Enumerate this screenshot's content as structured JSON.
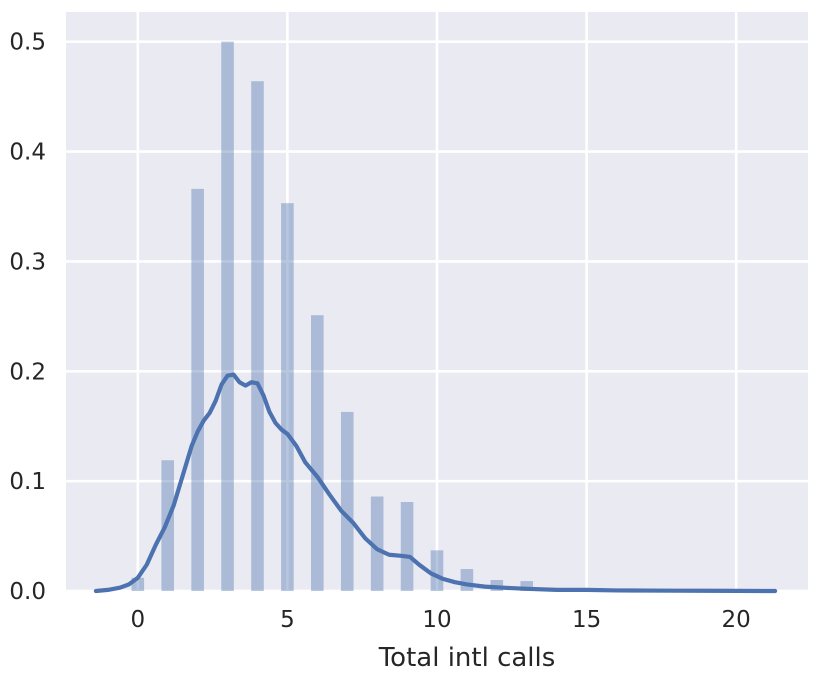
{
  "chart_data": {
    "type": "bar",
    "xlabel": "Total intl calls",
    "ylabel": "",
    "xlim": [
      -2.4,
      22.4
    ],
    "ylim": [
      0,
      0.527
    ],
    "xticks": [
      0,
      5,
      10,
      15,
      20
    ],
    "yticks": [
      0.0,
      0.1,
      0.2,
      0.3,
      0.4,
      0.5
    ],
    "xtick_labels": [
      "0",
      "5",
      "10",
      "15",
      "20"
    ],
    "ytick_labels": [
      "0.0",
      "0.1",
      "0.2",
      "0.3",
      "0.4",
      "0.5"
    ],
    "grid": true,
    "colors": {
      "bars": "#4c72b0",
      "line": "#4c72b0",
      "background": "#eaeaf2",
      "grid": "#ffffff"
    },
    "histogram": {
      "name": "",
      "bars": [
        {
          "x": 0,
          "y": 0.012
        },
        {
          "x": 1,
          "y": 0.119
        },
        {
          "x": 2,
          "y": 0.366
        },
        {
          "x": 3,
          "y": 0.5
        },
        {
          "x": 4,
          "y": 0.464
        },
        {
          "x": 5,
          "y": 0.353
        },
        {
          "x": 6,
          "y": 0.251
        },
        {
          "x": 7,
          "y": 0.163
        },
        {
          "x": 8,
          "y": 0.086
        },
        {
          "x": 9,
          "y": 0.081
        },
        {
          "x": 10,
          "y": 0.037
        },
        {
          "x": 11,
          "y": 0.02
        },
        {
          "x": 12,
          "y": 0.01
        },
        {
          "x": 13,
          "y": 0.009
        },
        {
          "x": 15,
          "y": 0.002
        }
      ]
    },
    "kde": {
      "name": "",
      "x": [
        -1.4,
        -1.0,
        -0.6,
        -0.3,
        0.0,
        0.3,
        0.6,
        0.9,
        1.2,
        1.5,
        1.8,
        2.0,
        2.2,
        2.4,
        2.6,
        2.8,
        3.0,
        3.2,
        3.4,
        3.6,
        3.8,
        4.0,
        4.2,
        4.4,
        4.6,
        4.8,
        5.0,
        5.3,
        5.6,
        6.0,
        6.4,
        6.8,
        7.2,
        7.6,
        8.0,
        8.4,
        8.8,
        9.1,
        9.4,
        9.8,
        10.2,
        10.6,
        11.0,
        11.6,
        12.2,
        13.0,
        14.0,
        15.0,
        16.0,
        17.0,
        18.0,
        19.0,
        20.0,
        21.3
      ],
      "y": [
        0.0,
        0.001,
        0.003,
        0.006,
        0.012,
        0.024,
        0.042,
        0.058,
        0.078,
        0.105,
        0.132,
        0.145,
        0.155,
        0.162,
        0.173,
        0.188,
        0.196,
        0.197,
        0.19,
        0.187,
        0.19,
        0.189,
        0.178,
        0.163,
        0.153,
        0.147,
        0.143,
        0.132,
        0.117,
        0.104,
        0.088,
        0.073,
        0.062,
        0.048,
        0.038,
        0.033,
        0.032,
        0.031,
        0.024,
        0.016,
        0.011,
        0.008,
        0.006,
        0.004,
        0.003,
        0.002,
        0.001,
        0.001,
        0.0005,
        0.0004,
        0.0003,
        0.0002,
        0.0001,
        0.0
      ]
    }
  }
}
